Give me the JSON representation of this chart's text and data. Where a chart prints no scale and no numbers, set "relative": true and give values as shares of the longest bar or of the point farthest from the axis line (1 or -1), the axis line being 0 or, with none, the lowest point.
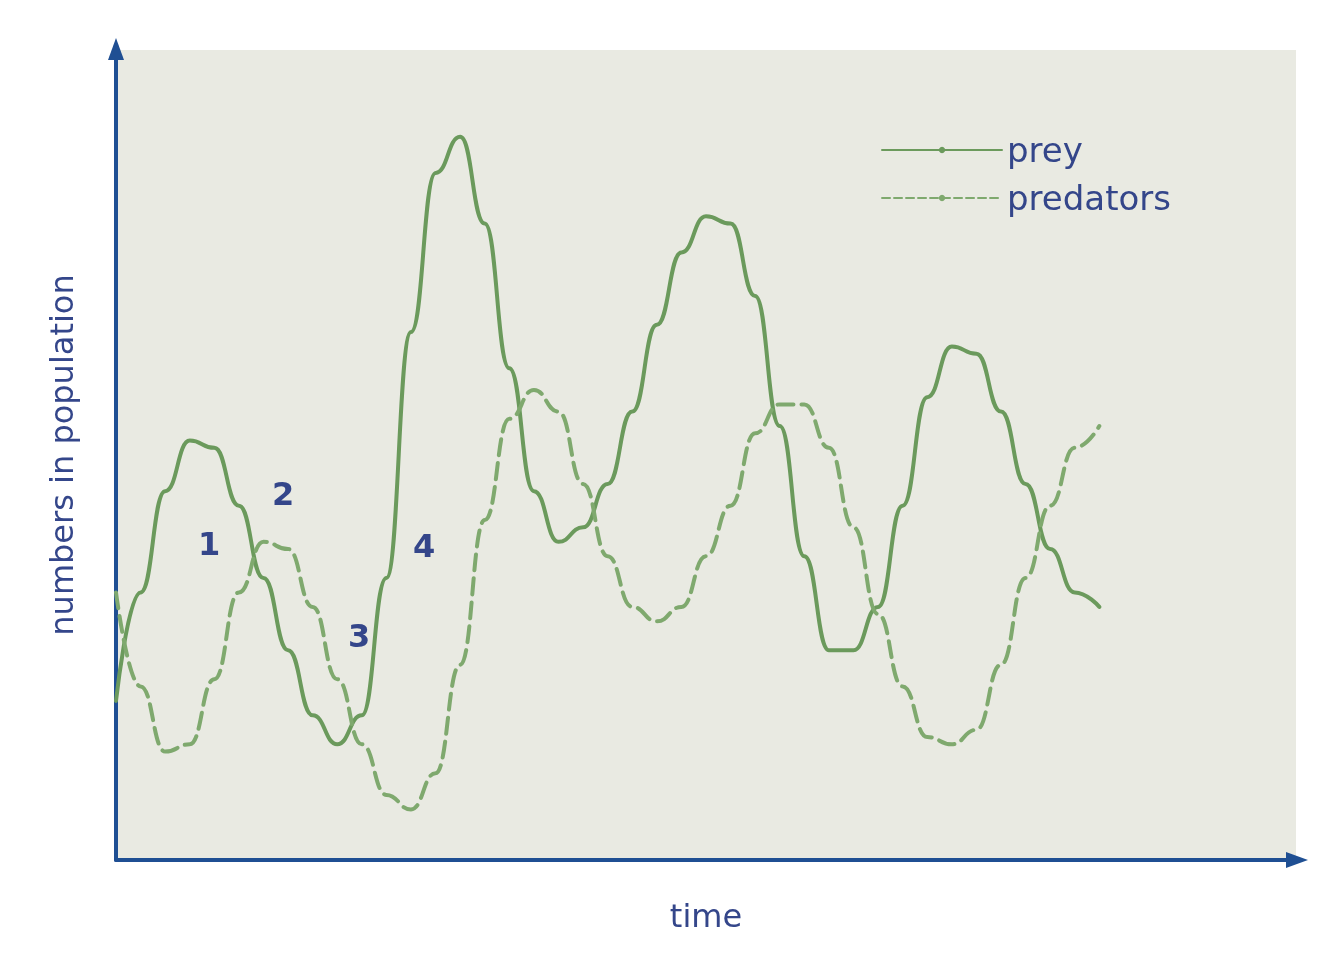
{
  "chart_data": {
    "type": "line",
    "relative": true,
    "xlabel": "time",
    "ylabel": "numbers in population",
    "legend": "top right",
    "grid": false,
    "marker": "none",
    "categories": [
      null,
      null,
      null,
      null,
      null,
      null,
      null,
      null,
      null,
      null,
      null,
      null,
      null,
      null,
      null,
      null,
      null,
      null,
      null,
      null,
      null,
      null,
      null,
      null,
      null,
      null,
      null,
      null,
      null,
      null,
      null,
      null,
      null,
      null,
      null,
      null,
      null,
      null,
      null,
      null,
      null
    ],
    "series": [
      {
        "name": "prey",
        "color": "#6b9a5c",
        "line_style": "solid",
        "values": [
          0.22,
          0.37,
          0.51,
          0.58,
          0.57,
          0.49,
          0.39,
          0.29,
          0.2,
          0.16,
          0.2,
          0.39,
          0.73,
          0.95,
          1,
          0.88,
          0.68,
          0.51,
          0.44,
          0.46,
          0.52,
          0.62,
          0.74,
          0.84,
          0.89,
          0.88,
          0.78,
          0.6,
          0.42,
          0.29,
          0.29,
          0.35,
          0.49,
          0.64,
          0.71,
          0.7,
          0.62,
          0.52,
          0.43,
          0.37,
          0.35
        ]
      },
      {
        "name": "predators",
        "color": "#7fa96e",
        "line_style": "dashed",
        "values": [
          0.37,
          0.24,
          0.15,
          0.16,
          0.25,
          0.37,
          0.44,
          0.43,
          0.35,
          0.25,
          0.16,
          0.09,
          0.07,
          0.12,
          0.27,
          0.47,
          0.61,
          0.65,
          0.62,
          0.52,
          0.42,
          0.35,
          0.33,
          0.35,
          0.42,
          0.49,
          0.59,
          0.63,
          0.63,
          0.57,
          0.46,
          0.34,
          0.24,
          0.17,
          0.16,
          0.18,
          0.27,
          0.39,
          0.49,
          0.57,
          0.6
        ]
      }
    ],
    "annotations": [
      "1",
      "2",
      "3",
      "4"
    ]
  }
}
